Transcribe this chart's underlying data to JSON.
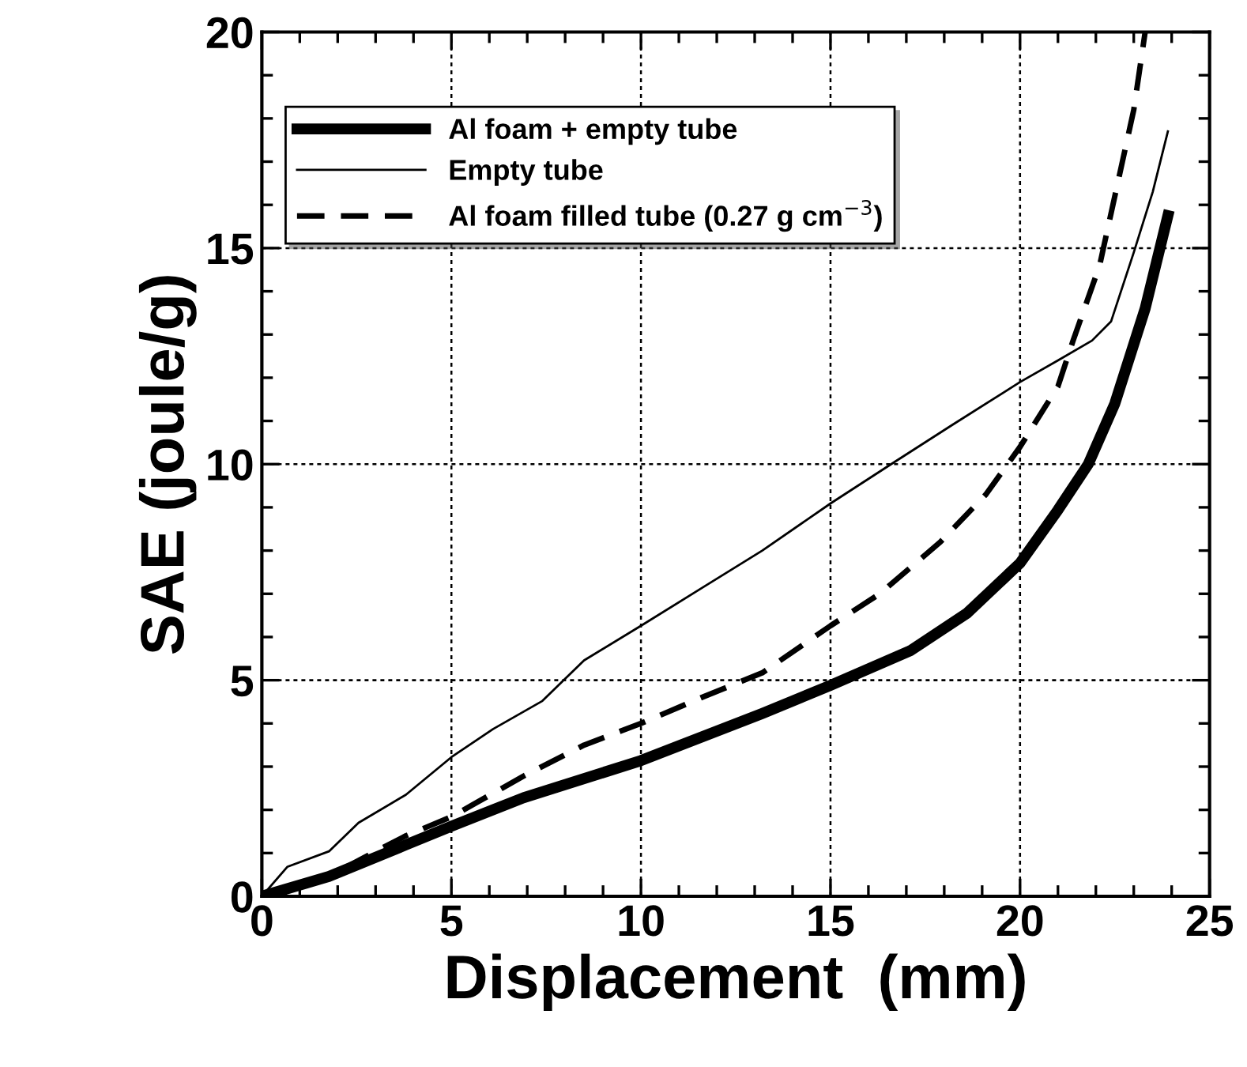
{
  "chart_data": {
    "type": "line",
    "xlabel": "Displacement  (mm)",
    "ylabel": "SAE (joule/g)",
    "xlim": [
      0,
      25
    ],
    "ylim": [
      0,
      20
    ],
    "xticks": [
      0,
      5,
      10,
      15,
      20,
      25
    ],
    "yticks": [
      0,
      5,
      10,
      15,
      20
    ],
    "grid": true,
    "legend": "top left",
    "series": [
      {
        "name": "Al foam + empty tube",
        "color": "#000000",
        "line_style": "solid",
        "x": [
          0,
          1.77,
          3.8,
          5,
          6.9,
          10,
          13.2,
          15,
          17.1,
          18.6,
          20,
          21,
          21.8,
          22.5,
          23.3,
          23.9
        ],
        "values": [
          0,
          0.46,
          1.19,
          1.62,
          2.28,
          3.14,
          4.23,
          4.88,
          5.68,
          6.55,
          7.71,
          8.94,
          10.0,
          11.4,
          13.6,
          15.75
        ]
      },
      {
        "name": "Empty tube",
        "color": "#000000",
        "line_style": "solid",
        "x": [
          0,
          0.67,
          1.77,
          2.55,
          3.8,
          5,
          6.1,
          7.4,
          8.5,
          10,
          11.6,
          13.2,
          15,
          16.6,
          18.2,
          20,
          21,
          21.9,
          22.4,
          23,
          23.5,
          23.9
        ],
        "values": [
          0,
          0.68,
          1.04,
          1.7,
          2.35,
          3.22,
          3.87,
          4.52,
          5.46,
          6.26,
          7.13,
          8.0,
          9.09,
          10.0,
          10.9,
          11.9,
          12.4,
          12.86,
          13.3,
          14.9,
          16.3,
          17.7
        ]
      },
      {
        "name": "Al foam filled tube (0.27 g cm$^{−3}$)",
        "color": "#000000",
        "line_style": "dashed",
        "x": [
          0,
          1.77,
          3.0,
          3.8,
          5,
          6.9,
          8.5,
          10,
          11.6,
          13.2,
          15,
          16.3,
          17.9,
          19.1,
          20,
          21,
          21.4,
          22.1,
          22.5,
          23,
          23.3
        ],
        "values": [
          0,
          0.46,
          1.04,
          1.4,
          1.84,
          2.78,
          3.5,
          4.0,
          4.6,
          5.17,
          6.26,
          7.0,
          8.2,
          9.3,
          10.4,
          11.8,
          12.86,
          14.6,
          16.2,
          18.2,
          20
        ]
      }
    ]
  }
}
